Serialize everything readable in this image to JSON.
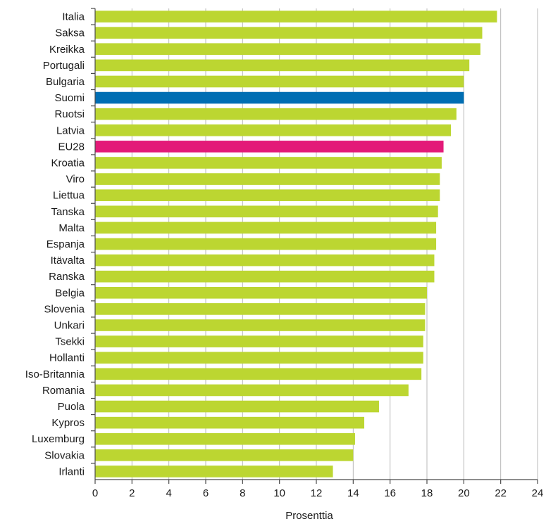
{
  "chart_data": {
    "type": "bar",
    "orientation": "horizontal",
    "categories": [
      "Italia",
      "Saksa",
      "Kreikka",
      "Portugali",
      "Bulgaria",
      "Suomi",
      "Ruotsi",
      "Latvia",
      "EU28",
      "Kroatia",
      "Viro",
      "Liettua",
      "Tanska",
      "Malta",
      "Espanja",
      "Itävalta",
      "Ranska",
      "Belgia",
      "Slovenia",
      "Unkari",
      "Tsekki",
      "Hollanti",
      "Iso-Britannia",
      "Romania",
      "Puola",
      "Kypros",
      "Luxemburg",
      "Slovakia",
      "Irlanti"
    ],
    "values": [
      21.8,
      21.0,
      20.9,
      20.3,
      20.0,
      20.0,
      19.6,
      19.3,
      18.9,
      18.8,
      18.7,
      18.7,
      18.6,
      18.5,
      18.5,
      18.4,
      18.4,
      18.0,
      17.9,
      17.9,
      17.8,
      17.8,
      17.7,
      17.0,
      15.4,
      14.6,
      14.1,
      14.0,
      12.9
    ],
    "xlabel": "Prosenttia",
    "ylabel": "",
    "title": "",
    "xlim": [
      0,
      24
    ],
    "xticks": [
      "0",
      "2",
      "4",
      "6",
      "8",
      "10",
      "12",
      "14",
      "16",
      "18",
      "20",
      "22",
      "24"
    ],
    "grid": "vertical",
    "legend": "none",
    "colors": {
      "default": "#bcd631",
      "highlight": {
        "Suomi": "#006eb3",
        "EU28": "#e31a78"
      },
      "grid": "#b8b8b8",
      "axis": "#4a4a4a"
    }
  }
}
